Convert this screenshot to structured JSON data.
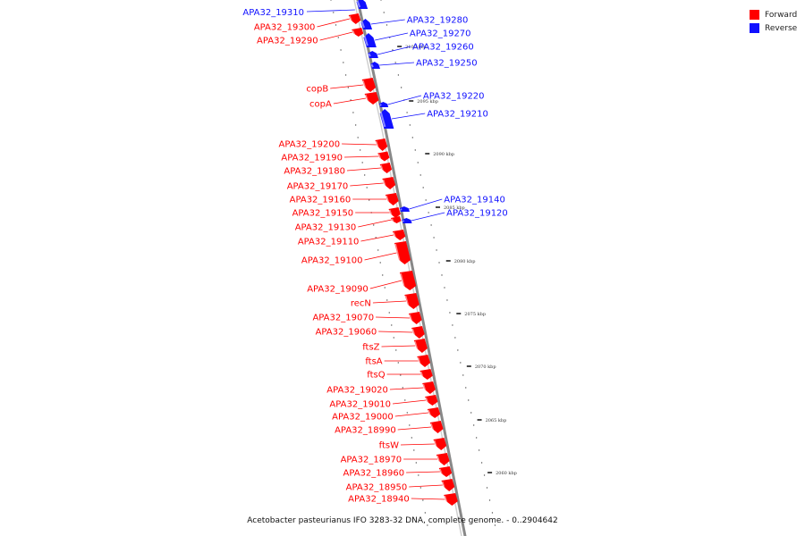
{
  "caption": "Acetobacter pasteurianus IFO 3283-32 DNA, complete genome. - 0..2904642",
  "legend": [
    {
      "label": "Forward",
      "color": "#ff0000"
    },
    {
      "label": "Reverse",
      "color": "#1010ff"
    }
  ],
  "colors": {
    "forward": "#ff0000",
    "reverse": "#1010ff",
    "backbone": "#888888"
  },
  "ticks": [
    "2100 kbp",
    "2095 kbp",
    "2090 kbp",
    "2085 kbp",
    "2080 kbp",
    "2075 kbp",
    "2070 kbp",
    "2065 kbp",
    "2060 kbp"
  ],
  "forward_genes": [
    "APA32_19300",
    "APA32_19290",
    "copB",
    "copA",
    "APA32_19200",
    "APA32_19190",
    "APA32_19180",
    "APA32_19170",
    "APA32_19160",
    "APA32_19150",
    "APA32_19130",
    "APA32_19110",
    "APA32_19100",
    "APA32_19090",
    "recN",
    "APA32_19070",
    "APA32_19060",
    "ftsZ",
    "ftsA",
    "ftsQ",
    "APA32_19020",
    "APA32_19010",
    "APA32_19000",
    "APA32_18990",
    "ftsW",
    "APA32_18970",
    "APA32_18960",
    "APA32_18950",
    "APA32_18940"
  ],
  "reverse_genes": [
    "APA32_19310",
    "APA32_19280",
    "APA32_19270",
    "APA32_19260",
    "APA32_19250",
    "APA32_19220",
    "APA32_19210",
    "APA32_19140",
    "APA32_19120"
  ]
}
